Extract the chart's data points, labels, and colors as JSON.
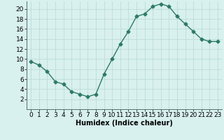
{
  "x": [
    0,
    1,
    2,
    3,
    4,
    5,
    6,
    7,
    8,
    9,
    10,
    11,
    12,
    13,
    14,
    15,
    16,
    17,
    18,
    19,
    20,
    21,
    22,
    23
  ],
  "y": [
    9.5,
    8.8,
    7.5,
    5.5,
    5.0,
    3.5,
    3.0,
    2.5,
    3.0,
    7.0,
    10.0,
    13.0,
    15.5,
    18.5,
    19.0,
    20.5,
    21.0,
    20.5,
    18.5,
    17.0,
    15.5,
    14.0,
    13.5,
    13.5
  ],
  "title": "",
  "xlabel": "Humidex (Indice chaleur)",
  "ylabel": "",
  "xlim": [
    -0.5,
    23.5
  ],
  "ylim": [
    0,
    21.5
  ],
  "yticks": [
    2,
    4,
    6,
    8,
    10,
    12,
    14,
    16,
    18,
    20
  ],
  "xticks": [
    0,
    1,
    2,
    3,
    4,
    5,
    6,
    7,
    8,
    9,
    10,
    11,
    12,
    13,
    14,
    15,
    16,
    17,
    18,
    19,
    20,
    21,
    22,
    23
  ],
  "line_color": "#2d7a68",
  "marker": "D",
  "marker_size": 2.5,
  "bg_color": "#d8f0ee",
  "grid_color": "#b8d8d4",
  "label_fontsize": 7,
  "tick_fontsize": 6.5
}
